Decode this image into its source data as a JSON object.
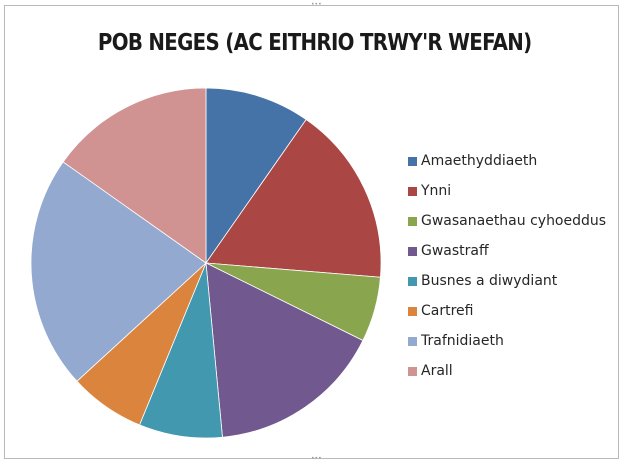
{
  "chart_data": {
    "type": "pie",
    "title": "POB NEGES (AC EITHRIO TRWY'R WEFAN)",
    "categories": [
      "Amaethyddiaeth",
      "Ynni",
      "Gwasanaethau cyhoeddus",
      "Gwastraff",
      "Busnes a diwydiant",
      "Cartrefi",
      "Trafnidiaeth",
      "Arall"
    ],
    "values": [
      9.7,
      16.6,
      6.0,
      16.2,
      7.7,
      7.0,
      21.6,
      15.2
    ],
    "colors": [
      "#4572a7",
      "#aa4643",
      "#89a54e",
      "#71588f",
      "#4198af",
      "#db843d",
      "#93a9cf",
      "#d19392"
    ],
    "legend_position": "right",
    "start_angle_deg": 0,
    "direction": "clockwise"
  }
}
